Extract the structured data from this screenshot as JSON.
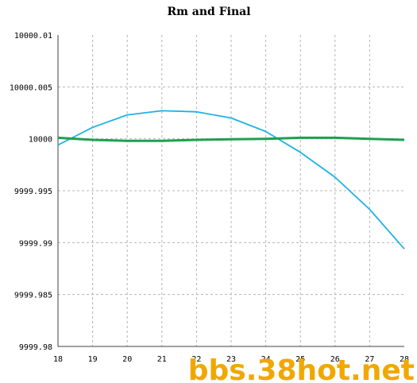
{
  "chart_data": {
    "type": "line",
    "title": "Rm and Final",
    "xlabel": "",
    "ylabel": "",
    "xlim": [
      18,
      28
    ],
    "ylim": [
      9999.98,
      10000.01
    ],
    "x_ticks": [
      "18",
      "19",
      "20",
      "21",
      "22",
      "23",
      "24",
      "25",
      "26",
      "27",
      "28"
    ],
    "y_ticks": [
      "10000.01",
      "10000.005",
      "10000",
      "9999.995",
      "9999.99",
      "9999.985",
      "9999.98"
    ],
    "grid": true,
    "x": [
      18,
      19,
      20,
      21,
      22,
      23,
      24,
      25,
      26,
      27,
      28
    ],
    "series": [
      {
        "color": "#1eb2e6",
        "values": [
          9999.9994,
          10000.0011,
          10000.0023,
          10000.0027,
          10000.0026,
          10000.002,
          10000.0007,
          9999.9987,
          9999.9963,
          9999.9932,
          9999.9894
        ]
      },
      {
        "color": "#1ea050",
        "values": [
          10000.0001,
          9999.9999,
          9999.9998,
          9999.9998,
          9999.9999,
          9999.99995,
          10000.0,
          10000.0001,
          10000.0001,
          10000.0,
          9999.9999
        ]
      }
    ]
  },
  "watermark": {
    "text": "bbs.38hot.net",
    "color": "#f0a800"
  }
}
